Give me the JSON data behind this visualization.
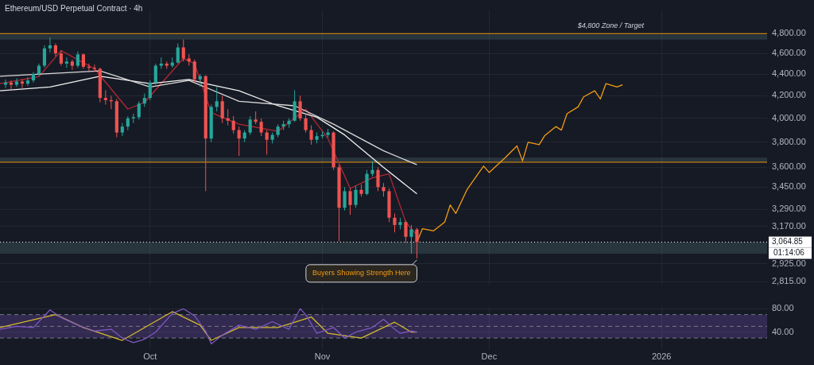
{
  "chart_data": [
    {
      "type": "candlestick",
      "title": "Ethereum/USD Perpetual Contract · 4h",
      "log": "y",
      "grid": true,
      "tick_labels": "y",
      "xlim": [
        "2025-09-04",
        "2026-01-20"
      ],
      "xticks": [
        {
          "value": "2025-10-01",
          "label": null
        },
        {
          "value": "2025-11-01",
          "label": null
        },
        {
          "value": "2025-12-01",
          "label": null
        },
        {
          "value": "2026-01-01",
          "label": null
        }
      ],
      "ylim": [
        2790,
        5050
      ],
      "yticks": [
        {
          "value": 2815,
          "label": "2,815.00"
        },
        {
          "value": 2925,
          "label": "2,925.00"
        },
        {
          "value": 3170,
          "label": "3,170.00"
        },
        {
          "value": 3290,
          "label": "3,290.00"
        },
        {
          "value": 3450,
          "label": "3,450.00"
        },
        {
          "value": 3600,
          "label": "3,600.00"
        },
        {
          "value": 3800,
          "label": "3,800.00"
        },
        {
          "value": 4000,
          "label": "4,000.00"
        },
        {
          "value": 4200,
          "label": "4,200.00"
        },
        {
          "value": 4400,
          "label": "4,400.00"
        },
        {
          "value": 4600,
          "label": "4,600.00"
        },
        {
          "value": 4800,
          "label": "4,800.00"
        }
      ],
      "x": [
        "2025-09-05",
        "2025-09-06",
        "2025-09-07",
        "2025-09-08",
        "2025-09-09",
        "2025-09-10",
        "2025-09-11",
        "2025-09-12",
        "2025-09-13",
        "2025-09-14",
        "2025-09-15",
        "2025-09-16",
        "2025-09-17",
        "2025-09-18",
        "2025-09-19",
        "2025-09-20",
        "2025-09-21",
        "2025-09-22",
        "2025-09-23",
        "2025-09-24",
        "2025-09-25",
        "2025-09-26",
        "2025-09-27",
        "2025-09-28",
        "2025-09-29",
        "2025-09-30",
        "2025-10-01",
        "2025-10-02",
        "2025-10-03",
        "2025-10-04",
        "2025-10-05",
        "2025-10-06",
        "2025-10-07",
        "2025-10-08",
        "2025-10-09",
        "2025-10-10",
        "2025-10-11",
        "2025-10-12",
        "2025-10-13",
        "2025-10-14",
        "2025-10-15",
        "2025-10-16",
        "2025-10-17",
        "2025-10-18",
        "2025-10-19",
        "2025-10-20",
        "2025-10-21",
        "2025-10-22",
        "2025-10-23",
        "2025-10-24",
        "2025-10-25",
        "2025-10-26",
        "2025-10-27",
        "2025-10-28",
        "2025-10-29",
        "2025-10-30",
        "2025-10-31",
        "2025-11-01",
        "2025-11-02",
        "2025-11-03",
        "2025-11-04",
        "2025-11-05",
        "2025-11-06",
        "2025-11-07",
        "2025-11-08",
        "2025-11-09",
        "2025-11-10",
        "2025-11-11",
        "2025-11-12",
        "2025-11-13",
        "2025-11-14",
        "2025-11-15",
        "2025-11-16",
        "2025-11-17",
        "2025-11-18"
      ],
      "ohlc": [
        [
          4300,
          4350,
          4270,
          4320
        ],
        [
          4320,
          4340,
          4260,
          4300
        ],
        [
          4300,
          4360,
          4280,
          4330
        ],
        [
          4330,
          4350,
          4270,
          4310
        ],
        [
          4310,
          4370,
          4290,
          4340
        ],
        [
          4340,
          4420,
          4320,
          4400
        ],
        [
          4400,
          4500,
          4380,
          4480
        ],
        [
          4480,
          4680,
          4460,
          4650
        ],
        [
          4650,
          4760,
          4610,
          4680
        ],
        [
          4680,
          4700,
          4570,
          4600
        ],
        [
          4600,
          4630,
          4480,
          4500
        ],
        [
          4500,
          4560,
          4460,
          4520
        ],
        [
          4520,
          4540,
          4440,
          4480
        ],
        [
          4480,
          4620,
          4460,
          4590
        ],
        [
          4590,
          4600,
          4450,
          4470
        ],
        [
          4470,
          4500,
          4430,
          4460
        ],
        [
          4460,
          4490,
          4420,
          4450
        ],
        [
          4450,
          4460,
          4140,
          4180
        ],
        [
          4180,
          4250,
          4120,
          4160
        ],
        [
          4160,
          4200,
          4080,
          4150
        ],
        [
          4150,
          4170,
          3840,
          3880
        ],
        [
          3880,
          3960,
          3850,
          3930
        ],
        [
          3930,
          4020,
          3900,
          4000
        ],
        [
          4000,
          4040,
          3960,
          4010
        ],
        [
          4010,
          4150,
          3990,
          4130
        ],
        [
          4130,
          4220,
          4100,
          4180
        ],
        [
          4180,
          4340,
          4160,
          4320
        ],
        [
          4320,
          4500,
          4300,
          4480
        ],
        [
          4480,
          4560,
          4450,
          4500
        ],
        [
          4500,
          4520,
          4450,
          4480
        ],
        [
          4480,
          4560,
          4460,
          4510
        ],
        [
          4510,
          4700,
          4500,
          4660
        ],
        [
          4660,
          4740,
          4520,
          4550
        ],
        [
          4550,
          4590,
          4480,
          4520
        ],
        [
          4520,
          4540,
          4320,
          4350
        ],
        [
          4350,
          4400,
          4280,
          4380
        ],
        [
          4380,
          4390,
          3420,
          3830
        ],
        [
          3830,
          4120,
          3800,
          4100
        ],
        [
          4100,
          4280,
          4060,
          4150
        ],
        [
          4150,
          4200,
          3960,
          4000
        ],
        [
          4000,
          4080,
          3940,
          3980
        ],
        [
          3980,
          4020,
          3870,
          3900
        ],
        [
          3900,
          3930,
          3690,
          3830
        ],
        [
          3830,
          3900,
          3800,
          3880
        ],
        [
          3880,
          4020,
          3860,
          3990
        ],
        [
          3990,
          4060,
          3950,
          3970
        ],
        [
          3970,
          4000,
          3850,
          3880
        ],
        [
          3880,
          3900,
          3700,
          3820
        ],
        [
          3820,
          3880,
          3790,
          3860
        ],
        [
          3860,
          3950,
          3840,
          3930
        ],
        [
          3930,
          3980,
          3900,
          3950
        ],
        [
          3950,
          4000,
          3920,
          3980
        ],
        [
          3980,
          4250,
          3970,
          4150
        ],
        [
          4150,
          4200,
          3980,
          4000
        ],
        [
          4000,
          4040,
          3880,
          3900
        ],
        [
          3900,
          3940,
          3780,
          3820
        ],
        [
          3820,
          3880,
          3790,
          3850
        ],
        [
          3850,
          3890,
          3830,
          3860
        ],
        [
          3860,
          3910,
          3840,
          3880
        ],
        [
          3880,
          3890,
          3580,
          3600
        ],
        [
          3600,
          3620,
          3070,
          3300
        ],
        [
          3300,
          3450,
          3280,
          3420
        ],
        [
          3420,
          3440,
          3250,
          3320
        ],
        [
          3320,
          3460,
          3300,
          3430
        ],
        [
          3430,
          3470,
          3380,
          3400
        ],
        [
          3400,
          3580,
          3390,
          3550
        ],
        [
          3550,
          3650,
          3530,
          3580
        ],
        [
          3580,
          3600,
          3420,
          3450
        ],
        [
          3450,
          3480,
          3380,
          3420
        ],
        [
          3420,
          3440,
          3200,
          3230
        ],
        [
          3230,
          3260,
          3130,
          3180
        ],
        [
          3180,
          3230,
          3150,
          3200
        ],
        [
          3200,
          3210,
          3060,
          3100
        ],
        [
          3100,
          3180,
          2990,
          3150
        ],
        [
          3150,
          3160,
          2960,
          3064.85
        ]
      ],
      "series": [
        {
          "type": "line",
          "color": "#d9d9d9",
          "x": [
            "2025-09-04",
            "2025-09-22",
            "2025-10-01",
            "2025-10-08",
            "2025-10-17",
            "2025-10-27",
            "2025-11-03",
            "2025-11-12",
            "2025-11-18"
          ],
          "values": [
            4380,
            4430,
            4280,
            4340,
            4150,
            4110,
            3950,
            3730,
            3620
          ]
        },
        {
          "type": "line",
          "color": "#f0f0f0",
          "x": [
            "2025-09-04",
            "2025-09-13",
            "2025-09-22",
            "2025-10-01",
            "2025-10-08",
            "2025-10-11",
            "2025-10-17",
            "2025-10-24",
            "2025-10-31",
            "2025-11-05",
            "2025-11-12",
            "2025-11-18"
          ],
          "values": [
            4245,
            4280,
            4380,
            4310,
            4350,
            4310,
            4245,
            4110,
            4010,
            3860,
            3600,
            3400
          ]
        },
        {
          "type": "line",
          "color": "#b22833",
          "x": [
            "2025-09-04",
            "2025-09-11",
            "2025-09-15",
            "2025-09-21",
            "2025-09-27",
            "2025-09-30",
            "2025-10-07",
            "2025-10-09",
            "2025-10-12",
            "2025-10-17",
            "2025-10-24",
            "2025-10-29",
            "2025-11-02",
            "2025-11-06",
            "2025-11-10",
            "2025-11-13",
            "2025-11-16",
            "2025-11-18"
          ],
          "values": [
            4310,
            4376,
            4628,
            4450,
            4080,
            4140,
            4550,
            4500,
            4050,
            3950,
            3890,
            4080,
            3830,
            3440,
            3520,
            3550,
            3200,
            3110
          ]
        },
        {
          "type": "line",
          "color": "#f39c12",
          "x": [
            "2025-11-18",
            "2025-11-19",
            "2025-11-21",
            "2025-11-23",
            "2025-11-24",
            "2025-11-25",
            "2025-11-27",
            "2025-11-29",
            "2025-11-30",
            "2025-12-01",
            "2025-12-03",
            "2025-12-04",
            "2025-12-06",
            "2025-12-07",
            "2025-12-08",
            "2025-12-10",
            "2025-12-11",
            "2025-12-13",
            "2025-12-14",
            "2025-12-15",
            "2025-12-17",
            "2025-12-18",
            "2025-12-20",
            "2025-12-21",
            "2025-12-22",
            "2025-12-24",
            "2025-12-25"
          ],
          "values": [
            3064.85,
            3155,
            3140,
            3200,
            3320,
            3260,
            3430,
            3550,
            3610,
            3560,
            3640,
            3680,
            3770,
            3650,
            3800,
            3780,
            3855,
            3930,
            3900,
            4040,
            4100,
            4190,
            4245,
            4170,
            4310,
            4280,
            4300
          ]
        }
      ],
      "bands": [
        {
          "axis": "y",
          "from": 4740,
          "to": 4790,
          "label": "$4,800 Zone / Target",
          "color": "#5f7f7c"
        },
        {
          "axis": "y",
          "from": 3645,
          "to": 3675,
          "color": "#5f7f7c"
        },
        {
          "axis": "y",
          "from": 2990,
          "to": 3065,
          "color": "#5f7f7c"
        }
      ],
      "ref_lines": [
        {
          "axis": "y",
          "value": 4800,
          "color": "#f39c12"
        },
        {
          "axis": "y",
          "value": 3640,
          "color": "#f39c12"
        },
        {
          "axis": "y",
          "value": 3064.85,
          "label": "3,064.85",
          "color": "#ffffff",
          "line_style": "dotted"
        }
      ],
      "annotations": [
        {
          "text": "Buyers Showing Strength Here",
          "x": "2025-11-18",
          "y": 2960
        },
        "01:14:06"
      ]
    },
    {
      "type": "line",
      "grid": true,
      "xlim": [
        "2025-09-04",
        "2026-01-20"
      ],
      "xticks": [
        {
          "value": "2025-10-01",
          "label": "Oct"
        },
        {
          "value": "2025-11-01",
          "label": "Nov"
        },
        {
          "value": "2025-12-01",
          "label": "Dec"
        },
        {
          "value": "2026-01-01",
          "label": "2026"
        }
      ],
      "ylim": [
        10,
        85
      ],
      "yticks": [
        {
          "value": 40,
          "label": "40.00"
        },
        {
          "value": 80,
          "label": "80.00"
        }
      ],
      "series": [
        {
          "color": "#7e57c2",
          "x": [
            "2025-09-04",
            "2025-09-07",
            "2025-09-10",
            "2025-09-13",
            "2025-09-15",
            "2025-09-18",
            "2025-09-21",
            "2025-09-24",
            "2025-09-26",
            "2025-09-28",
            "2025-09-30",
            "2025-10-02",
            "2025-10-05",
            "2025-10-07",
            "2025-10-09",
            "2025-10-11",
            "2025-10-12",
            "2025-10-14",
            "2025-10-17",
            "2025-10-20",
            "2025-10-23",
            "2025-10-26",
            "2025-10-28",
            "2025-10-29",
            "2025-10-31",
            "2025-11-03",
            "2025-11-05",
            "2025-11-07",
            "2025-11-10",
            "2025-11-12",
            "2025-11-14",
            "2025-11-15",
            "2025-11-17",
            "2025-11-18"
          ],
          "values": [
            45,
            50,
            48,
            78,
            65,
            52,
            42,
            45,
            30,
            22,
            28,
            40,
            72,
            80,
            68,
            42,
            20,
            35,
            52,
            45,
            58,
            45,
            80,
            70,
            38,
            48,
            30,
            40,
            48,
            62,
            45,
            38,
            42,
            40
          ]
        },
        {
          "color": "#d4b92e",
          "x": [
            "2025-09-04",
            "2025-09-14",
            "2025-09-19",
            "2025-09-26",
            "2025-10-05",
            "2025-10-10",
            "2025-10-12",
            "2025-10-17",
            "2025-10-24",
            "2025-10-30",
            "2025-11-02",
            "2025-11-08",
            "2025-11-14",
            "2025-11-17",
            "2025-11-18"
          ],
          "values": [
            48,
            70,
            48,
            26,
            75,
            52,
            26,
            48,
            48,
            66,
            38,
            30,
            57,
            40,
            40
          ]
        }
      ],
      "bands": [
        {
          "axis": "y",
          "from": 30,
          "to": 70,
          "color": "#7e57c2"
        }
      ],
      "ref_lines": [
        {
          "axis": "y",
          "value": 70,
          "color": "#787b86",
          "line_style": "dashed"
        },
        {
          "axis": "y",
          "value": 50,
          "color": "#787b86",
          "line_style": "dashed"
        },
        {
          "axis": "y",
          "value": 30,
          "color": "#787b86",
          "line_style": "dashed"
        }
      ]
    }
  ]
}
